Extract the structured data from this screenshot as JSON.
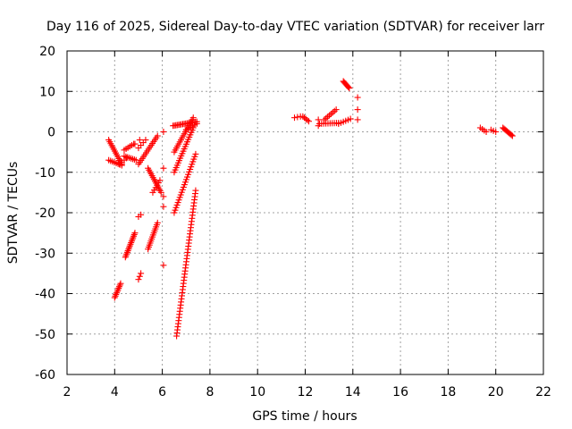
{
  "chart_data": {
    "type": "scatter",
    "title": "Day 116 of 2025, Sidereal Day-to-day VTEC variation (SDTVAR) for receiver larr",
    "xlabel": "GPS time / hours",
    "ylabel": "SDTVAR / TECUs",
    "xlim": [
      2,
      22
    ],
    "ylim": [
      -60,
      20
    ],
    "xticks": [
      2,
      4,
      6,
      8,
      10,
      12,
      14,
      16,
      18,
      20,
      22
    ],
    "yticks": [
      -60,
      -50,
      -40,
      -30,
      -20,
      -10,
      0,
      10,
      20
    ],
    "grid": true,
    "marker": "plus",
    "color": "#ff0000",
    "series": [
      {
        "name": "SDTVAR",
        "segments": [
          {
            "x0": 3.75,
            "y0": -2,
            "x1": 4.3,
            "y1": -8,
            "n": 14
          },
          {
            "x0": 3.75,
            "y0": -7,
            "x1": 4.3,
            "y1": -8.3,
            "n": 8
          },
          {
            "x0": 4.2,
            "y0": -8,
            "x1": 4.5,
            "y1": -6.5,
            "n": 4
          },
          {
            "x0": 4.4,
            "y0": -6,
            "x1": 4.9,
            "y1": -7,
            "n": 8
          },
          {
            "x0": 4.4,
            "y0": -4.5,
            "x1": 4.8,
            "y1": -3,
            "n": 6
          },
          {
            "x0": 4.0,
            "y0": -41,
            "x1": 4.25,
            "y1": -37.5,
            "n": 10
          },
          {
            "x0": 4.45,
            "y0": -31,
            "x1": 4.85,
            "y1": -25,
            "n": 16
          },
          {
            "x0": 5.0,
            "y0": -8,
            "x1": 5.8,
            "y1": -1,
            "n": 16
          },
          {
            "x0": 5.0,
            "y0": -4,
            "x1": 5.3,
            "y1": -2,
            "n": 4
          },
          {
            "x0": 5.0,
            "y0": -21,
            "x1": 5.1,
            "y1": -20.5,
            "n": 2
          },
          {
            "x0": 5.0,
            "y0": -36.5,
            "x1": 5.1,
            "y1": -35,
            "n": 3
          },
          {
            "x0": 5.4,
            "y0": -9,
            "x1": 5.95,
            "y1": -15,
            "n": 14
          },
          {
            "x0": 5.4,
            "y0": -29,
            "x1": 5.8,
            "y1": -22.5,
            "n": 14
          },
          {
            "x0": 5.6,
            "y0": -15,
            "x1": 5.9,
            "y1": -12,
            "n": 6
          },
          {
            "x0": 6.45,
            "y0": 1.5,
            "x1": 7.45,
            "y1": 2.5,
            "n": 18
          },
          {
            "x0": 6.5,
            "y0": -5,
            "x1": 7.3,
            "y1": 3.5,
            "n": 18
          },
          {
            "x0": 6.5,
            "y0": -10,
            "x1": 7.3,
            "y1": 1,
            "n": 20
          },
          {
            "x0": 6.5,
            "y0": -20,
            "x1": 7.4,
            "y1": -5.5,
            "n": 24
          },
          {
            "x0": 6.6,
            "y0": -50.5,
            "x1": 7.4,
            "y1": -14.5,
            "n": 48
          },
          {
            "x0": 7.0,
            "y0": 0.5,
            "x1": 7.45,
            "y1": 2,
            "n": 6
          },
          {
            "x0": 11.55,
            "y0": 3.5,
            "x1": 11.8,
            "y1": 3.8,
            "n": 3
          },
          {
            "x0": 11.9,
            "y0": 3.8,
            "x1": 12.15,
            "y1": 2.6,
            "n": 5
          },
          {
            "x0": 12.6,
            "y0": 2,
            "x1": 13.4,
            "y1": 2.2,
            "n": 10
          },
          {
            "x0": 12.8,
            "y0": 3,
            "x1": 13.3,
            "y1": 5.5,
            "n": 8
          },
          {
            "x0": 13.4,
            "y0": 2,
            "x1": 13.9,
            "y1": 3.2,
            "n": 6
          },
          {
            "x0": 13.6,
            "y0": 12.5,
            "x1": 13.85,
            "y1": 10.8,
            "n": 8
          },
          {
            "x0": 19.35,
            "y0": 1,
            "x1": 19.6,
            "y1": 0,
            "n": 4
          },
          {
            "x0": 19.8,
            "y0": 0.5,
            "x1": 20.0,
            "y1": 0,
            "n": 3
          },
          {
            "x0": 20.3,
            "y0": 1,
            "x1": 20.7,
            "y1": -1,
            "n": 10
          }
        ],
        "points": [
          [
            6.05,
            -9
          ],
          [
            6.05,
            -16
          ],
          [
            6.05,
            -18.5
          ],
          [
            6.05,
            -33
          ],
          [
            5.05,
            -2
          ],
          [
            4.85,
            -3
          ],
          [
            12.55,
            3
          ],
          [
            12.55,
            1.5
          ],
          [
            14.2,
            8.5
          ],
          [
            14.2,
            5.5
          ],
          [
            14.2,
            3
          ],
          [
            6.05,
            0
          ]
        ]
      }
    ]
  }
}
